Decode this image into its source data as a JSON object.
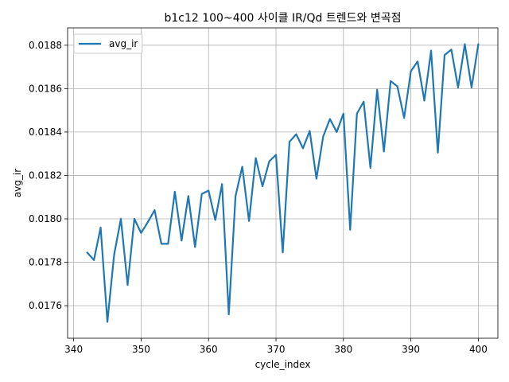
{
  "chart_data": {
    "type": "line",
    "title": "b1c12 100~400 사이클 IR/Qd 트렌드와 변곡점",
    "xlabel": "cycle_index",
    "ylabel": "avg_ir",
    "xlim": [
      339.1,
      402.9
    ],
    "ylim": [
      0.01745,
      0.01888
    ],
    "xticks": [
      340,
      350,
      360,
      370,
      380,
      390,
      400
    ],
    "xtick_labels": [
      "340",
      "350",
      "360",
      "370",
      "380",
      "390",
      "400"
    ],
    "yticks": [
      0.0176,
      0.0178,
      0.018,
      0.0182,
      0.0184,
      0.0186,
      0.0188
    ],
    "ytick_labels": [
      "0.0176",
      "0.0178",
      "0.0180",
      "0.0182",
      "0.0184",
      "0.0186",
      "0.0188"
    ],
    "grid": true,
    "legend_position": "upper-left",
    "series": [
      {
        "name": "avg_ir",
        "color": "#1f77b4",
        "x": [
          342,
          343,
          344,
          345,
          346,
          347,
          348,
          349,
          350,
          351,
          352,
          353,
          354,
          355,
          356,
          357,
          358,
          359,
          360,
          361,
          362,
          363,
          364,
          365,
          366,
          367,
          368,
          369,
          370,
          371,
          372,
          373,
          374,
          375,
          376,
          377,
          378,
          379,
          380,
          381,
          382,
          383,
          384,
          385,
          386,
          387,
          388,
          389,
          390,
          391,
          392,
          393,
          394,
          395,
          396,
          397,
          398,
          399,
          400
        ],
        "y": [
          0.017845,
          0.01781,
          0.01796,
          0.017525,
          0.017835,
          0.018,
          0.017695,
          0.018,
          0.017935,
          0.017985,
          0.01804,
          0.017885,
          0.017885,
          0.018125,
          0.0179,
          0.018105,
          0.01787,
          0.018115,
          0.01813,
          0.017995,
          0.01816,
          0.01756,
          0.018105,
          0.01824,
          0.01799,
          0.01828,
          0.01815,
          0.018265,
          0.018295,
          0.017845,
          0.018355,
          0.01839,
          0.018325,
          0.018405,
          0.018185,
          0.01838,
          0.01846,
          0.0184,
          0.018485,
          0.01795,
          0.018485,
          0.01854,
          0.018235,
          0.018595,
          0.01831,
          0.018635,
          0.01861,
          0.018465,
          0.01868,
          0.018725,
          0.018545,
          0.018775,
          0.018305,
          0.018755,
          0.01878,
          0.018605,
          0.018805,
          0.018605,
          0.018805
        ]
      }
    ]
  }
}
